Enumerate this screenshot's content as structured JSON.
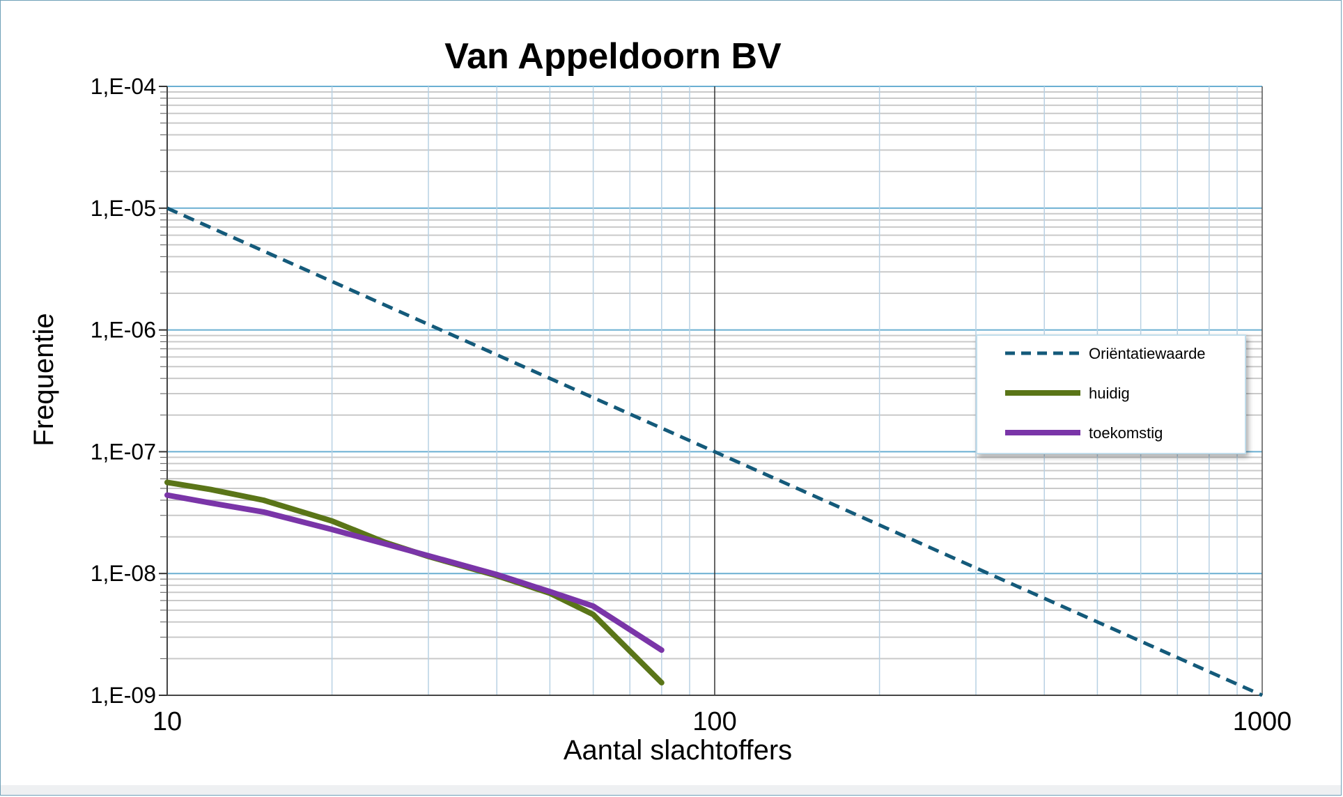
{
  "colors": {
    "orientatie": "#145a7a",
    "huidig": "#5a7518",
    "toekomstig": "#7a35a8",
    "major_grid": "#6aafd2",
    "minor_grid": "#c9c9c9",
    "vertical_grid": "#b8d1e3",
    "decade_line": "#333333"
  },
  "chart_data": {
    "type": "line",
    "title": "Van Appeldoorn BV",
    "xlabel": "Aantal slachtoffers",
    "ylabel": "Frequentie",
    "xscale": "log",
    "yscale": "log",
    "xlim": [
      10,
      1000
    ],
    "ylim": [
      1e-09,
      0.0001
    ],
    "grid": true,
    "legend_position": "right",
    "x_ticks": [
      {
        "value": 10,
        "label": "10"
      },
      {
        "value": 100,
        "label": "100"
      },
      {
        "value": 1000,
        "label": "1000"
      }
    ],
    "y_ticks": [
      {
        "value": 0.0001,
        "label": "1,E-04"
      },
      {
        "value": 1e-05,
        "label": "1,E-05"
      },
      {
        "value": 1e-06,
        "label": "1,E-06"
      },
      {
        "value": 1e-07,
        "label": "1,E-07"
      },
      {
        "value": 1e-08,
        "label": "1,E-08"
      },
      {
        "value": 1e-09,
        "label": "1,E-09"
      }
    ],
    "series": [
      {
        "name": "Oriëntatiewaarde",
        "color_key": "orientatie",
        "style": "dashed",
        "x": [
          10,
          1000
        ],
        "y": [
          1e-05,
          1e-09
        ]
      },
      {
        "name": "huidig",
        "color_key": "huidig",
        "style": "solid",
        "x": [
          10,
          12,
          15,
          20,
          25,
          30,
          40,
          50,
          60,
          80
        ],
        "y": [
          5.6e-08,
          4.9e-08,
          4e-08,
          2.7e-08,
          1.8e-08,
          1.38e-08,
          9.6e-09,
          6.9e-09,
          4.6e-09,
          1.27e-09
        ]
      },
      {
        "name": "toekomstig",
        "color_key": "toekomstig",
        "style": "solid",
        "x": [
          10,
          12,
          15,
          20,
          25,
          30,
          40,
          50,
          60,
          80
        ],
        "y": [
          4.4e-08,
          3.8e-08,
          3.2e-08,
          2.3e-08,
          1.75e-08,
          1.4e-08,
          9.8e-09,
          7.1e-09,
          5.4e-09,
          2.35e-09
        ]
      }
    ]
  }
}
